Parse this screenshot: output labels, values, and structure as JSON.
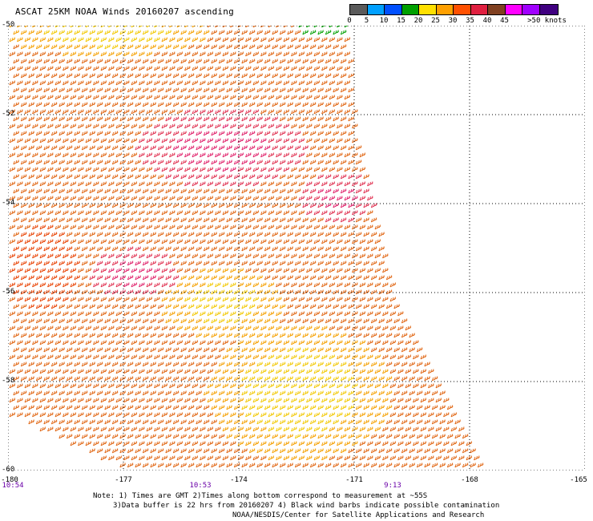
{
  "title": "ASCAT 25KM NOAA Winds 20160207 ascending",
  "legend": {
    "items": [
      {
        "label": "0",
        "color": "#5a5a5a"
      },
      {
        "label": "5",
        "color": "#00a0ff"
      },
      {
        "label": "10",
        "color": "#0050ff"
      },
      {
        "label": "15",
        "color": "#00a000"
      },
      {
        "label": "20",
        "color": "#ffe000"
      },
      {
        "label": "25",
        "color": "#ffa000"
      },
      {
        "label": "30",
        "color": "#ff5000"
      },
      {
        "label": "35",
        "color": "#e02040"
      },
      {
        "label": "40",
        "color": "#804020"
      },
      {
        "label": "45",
        "color": "#ff00ff"
      },
      {
        "label": "",
        "color": "#a000ff"
      },
      {
        "label": ">50 knots",
        "color": "#400080"
      }
    ]
  },
  "map": {
    "lon_range": [
      -180,
      -165
    ],
    "lat_range": [
      -60,
      -50
    ],
    "lon_ticks": [
      "-180",
      "-177",
      "-174",
      "-171",
      "-168",
      "-165"
    ],
    "lat_ticks": [
      "-50",
      "-52",
      "-54",
      "-56",
      "-58",
      "-60"
    ],
    "grid": true,
    "time_labels": [
      {
        "text": "10:54",
        "lon": -180
      },
      {
        "text": "10:53",
        "lon": -175
      },
      {
        "text": "9:13",
        "lon": -170
      }
    ]
  },
  "notes": {
    "line1": "Note: 1) Times are GMT 2)Times along bottom correspond to measurement at ~55S",
    "line2": "3)Data buffer is 22 hrs from 20160207 4) Black wind barbs indicate possible contamination",
    "line3": "NOAA/NESDIS/Center for Satellite Applications and Research"
  }
}
